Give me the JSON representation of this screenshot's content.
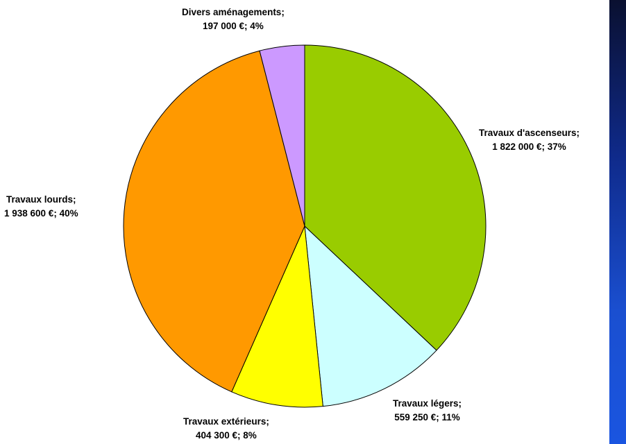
{
  "chart_data": {
    "type": "pie",
    "slices": [
      {
        "name": "Travaux d'ascenseurs",
        "value": 1822000,
        "value_label": "1 822 000 €",
        "percent": 37,
        "percent_label": "37%",
        "color": "#99cc00"
      },
      {
        "name": "Travaux légers",
        "value": 559250,
        "value_label": "559 250 €",
        "percent": 11,
        "percent_label": "11%",
        "color": "#ccffff"
      },
      {
        "name": "Travaux extérieurs",
        "value": 404300,
        "value_label": "404 300 €",
        "percent": 8,
        "percent_label": "8%",
        "color": "#ffff00"
      },
      {
        "name": "Travaux lourds",
        "value": 1938600,
        "value_label": "1 938 600 €",
        "percent": 40,
        "percent_label": "40%",
        "color": "#ff9900"
      },
      {
        "name": "Divers aménagements",
        "value": 197000,
        "value_label": "197 000 €",
        "percent": 4,
        "percent_label": "4%",
        "color": "#cc99ff"
      }
    ]
  },
  "labels": {
    "ascenseurs": {
      "line1": "Travaux d'ascenseurs;",
      "line2": "1 822 000 €; 37%"
    },
    "legers": {
      "line1": "Travaux légers;",
      "line2": "559 250 €; 11%"
    },
    "exterieurs": {
      "line1": "Travaux extérieurs;",
      "line2": "404 300 €; 8%"
    },
    "lourds": {
      "line1": "Travaux lourds;",
      "line2": "1 938 600 €; 40%"
    },
    "divers": {
      "line1": "Divers aménagements;",
      "line2": "197 000 €; 4%"
    }
  },
  "background_band_color": "#1a4fd0"
}
